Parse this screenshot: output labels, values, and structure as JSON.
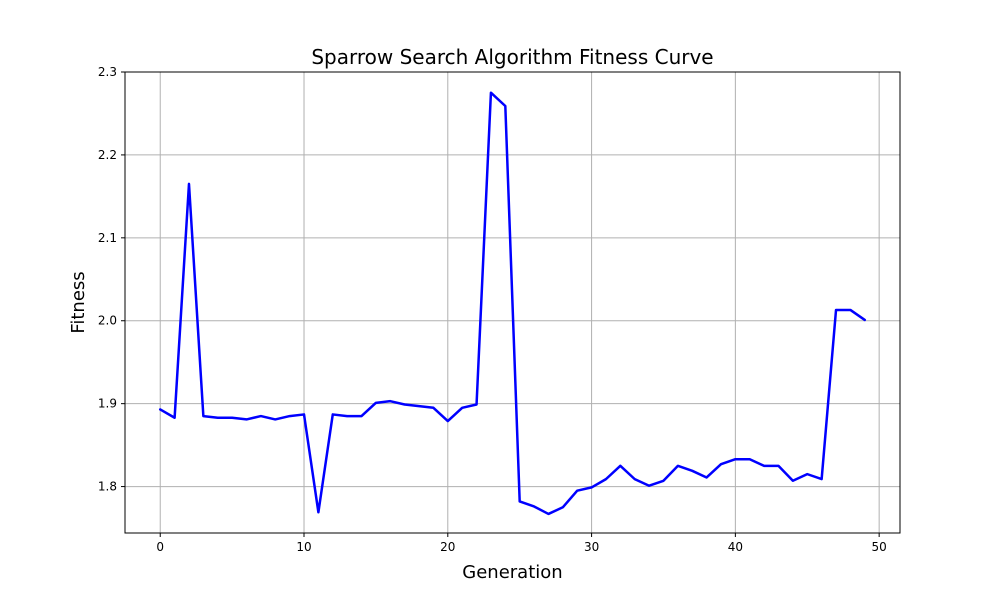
{
  "chart_data": {
    "type": "line",
    "title": "Sparrow Search Algorithm Fitness Curve",
    "xlabel": "Generation",
    "ylabel": "Fitness",
    "xlim": [
      -2.45,
      51.45
    ],
    "ylim": [
      1.744,
      2.3
    ],
    "xticks": [
      0,
      10,
      20,
      30,
      40,
      50
    ],
    "yticks": [
      1.8,
      1.9,
      2.0,
      2.1,
      2.2,
      2.3
    ],
    "xtick_labels": [
      "0",
      "10",
      "20",
      "30",
      "40",
      "50"
    ],
    "ytick_labels": [
      "1.8",
      "1.9",
      "2.0",
      "2.1",
      "2.2",
      "2.3"
    ],
    "grid": true,
    "line_color": "#0000ff",
    "series": [
      {
        "x": [
          0,
          1,
          2,
          3,
          4,
          5,
          6,
          7,
          8,
          9,
          10,
          11,
          12,
          13,
          14,
          15,
          16,
          17,
          18,
          19,
          20,
          21,
          22,
          23,
          24,
          25,
          26,
          27,
          28,
          29,
          30,
          31,
          32,
          33,
          34,
          35,
          36,
          37,
          38,
          39,
          40,
          41,
          42,
          43,
          44,
          45,
          46,
          47,
          48,
          49
        ],
        "values": [
          1.893,
          1.883,
          2.165,
          1.885,
          1.883,
          1.883,
          1.881,
          1.885,
          1.881,
          1.885,
          1.887,
          1.769,
          1.887,
          1.885,
          1.885,
          1.901,
          1.903,
          1.899,
          1.897,
          1.895,
          1.879,
          1.895,
          1.899,
          2.275,
          2.259,
          1.782,
          1.776,
          1.767,
          1.775,
          1.795,
          1.799,
          1.809,
          1.825,
          1.809,
          1.801,
          1.807,
          1.825,
          1.819,
          1.811,
          1.827,
          1.833,
          1.833,
          1.825,
          1.825,
          1.807,
          1.815,
          1.809,
          2.013,
          2.013,
          2.001
        ]
      }
    ]
  }
}
